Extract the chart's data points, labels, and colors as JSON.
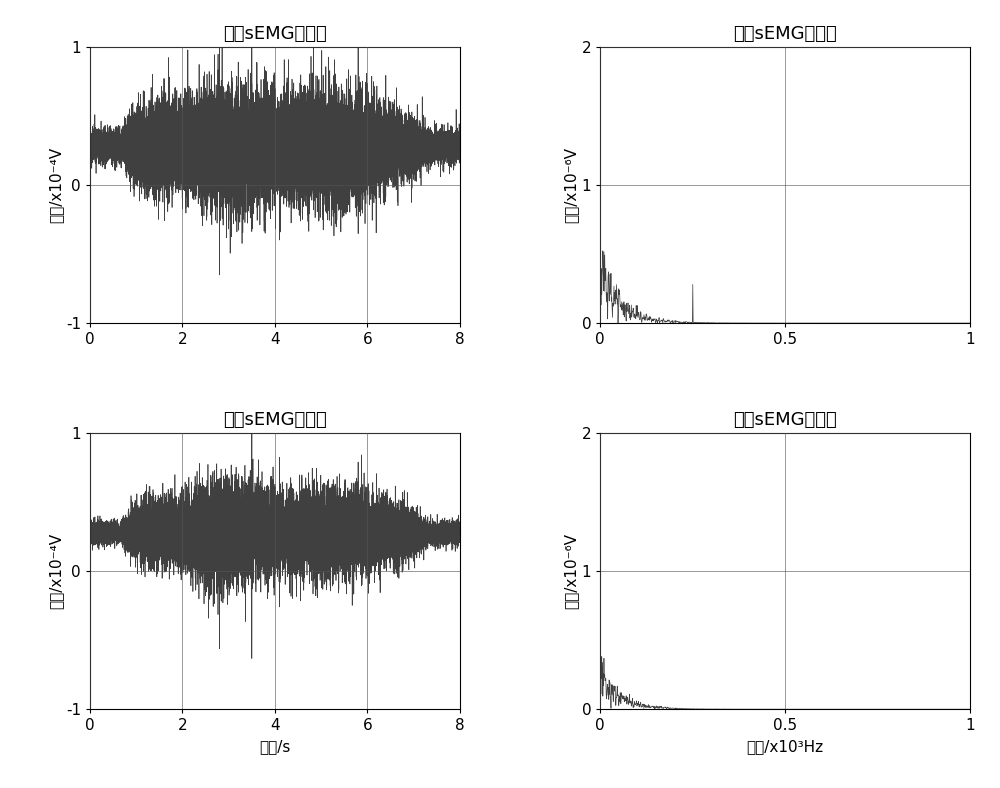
{
  "title_tl": "原始sEMG时域图",
  "title_tr": "原始sEMG频域图",
  "title_bl": "降噪sEMG时域图",
  "title_br": "降噪sEMG频域图",
  "xlabel_time": "时间/s",
  "xlabel_freq": "频率/x10³Hz",
  "ylabel_time": "幅值/x10⁻⁴V",
  "ylabel_freq": "幅值/x10⁻⁶V",
  "time_xlim": [
    0,
    8
  ],
  "time_ylim": [
    -1,
    1
  ],
  "freq_xlim": [
    0,
    1
  ],
  "freq_ylim": [
    0,
    2
  ],
  "time_xticks": [
    0,
    2,
    4,
    6,
    8
  ],
  "time_yticks": [
    -1,
    0,
    1
  ],
  "freq_xticks": [
    0,
    0.5,
    1
  ],
  "freq_yticks": [
    0,
    1,
    2
  ],
  "signal_color": "#404040",
  "line_width": 0.5,
  "title_fontsize": 13,
  "label_fontsize": 11,
  "tick_fontsize": 11,
  "background_color": "#ffffff",
  "grid_color": "#555555",
  "seed": 42
}
